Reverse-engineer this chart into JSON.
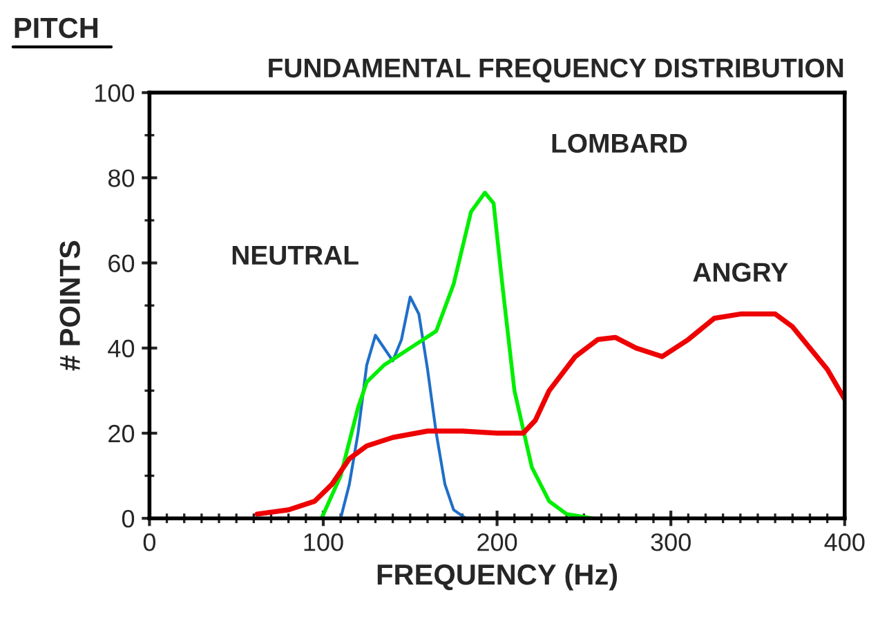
{
  "chart_data": {
    "type": "line",
    "title": "FUNDAMENTAL FREQUENCY DISTRIBUTION",
    "xlabel": "FREQUENCY (Hz)",
    "ylabel": "# POINTS",
    "annotations": [
      "PITCH"
    ],
    "xlim": [
      0,
      400
    ],
    "xticks": [
      0,
      100,
      200,
      300,
      400
    ],
    "ylim": [
      0,
      100
    ],
    "yticks": [
      0,
      20,
      40,
      60,
      80,
      100
    ],
    "grid": false,
    "legend": false,
    "marker": "none",
    "line_style": "solid",
    "series": [
      {
        "name": "NEUTRAL",
        "color": "#1f6fc8",
        "x": [
          110,
          115,
          120,
          125,
          130,
          135,
          140,
          145,
          150,
          155,
          160,
          165,
          170,
          175,
          182
        ],
        "values": [
          0,
          8,
          20,
          36,
          43,
          40,
          37,
          42,
          52,
          48,
          35,
          20,
          8,
          2,
          0
        ]
      },
      {
        "name": "LOMBARD",
        "color": "#00ee00",
        "x": [
          99,
          110,
          120,
          125,
          135,
          150,
          165,
          175,
          185,
          193,
          198,
          203,
          210,
          220,
          230,
          240,
          255
        ],
        "values": [
          0,
          10,
          26,
          32,
          36,
          40,
          44,
          55,
          72,
          76.5,
          74,
          55,
          30,
          12,
          4,
          1,
          0
        ]
      },
      {
        "name": "ANGRY",
        "color": "#ee0000",
        "x": [
          62,
          80,
          95,
          105,
          115,
          125,
          140,
          160,
          180,
          200,
          215,
          222,
          230,
          245,
          258,
          268,
          280,
          295,
          310,
          325,
          340,
          360,
          370,
          380,
          390,
          400
        ],
        "values": [
          1,
          2,
          4,
          8,
          14,
          17,
          19,
          20.5,
          20.5,
          20,
          20,
          23,
          30,
          38,
          42,
          42.5,
          40,
          38,
          42,
          47,
          48,
          48,
          45,
          40,
          35,
          28
        ]
      }
    ]
  }
}
